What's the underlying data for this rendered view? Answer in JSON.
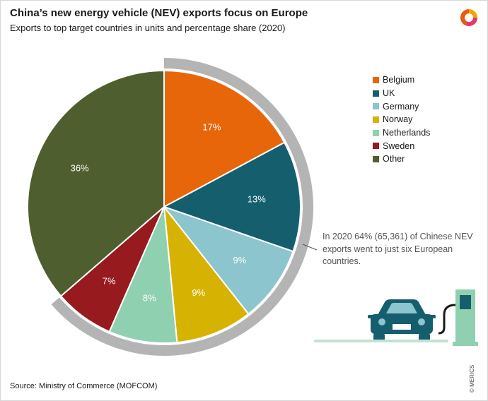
{
  "header": {
    "title": "China’s new energy vehicle (NEV) exports focus on Europe",
    "subtitle": "Exports to top target countries in units and percentage share (2020)"
  },
  "footer": {
    "source": "Source: Ministry of Commerce (MOFCOM)",
    "copyright": "© MERICS"
  },
  "annotation": {
    "text": "In 2020 64% (65,361) of Chinese NEV exports went to just six European countries."
  },
  "icons": [
    "merics-logo-icon",
    "electric-car-icon",
    "charging-station-icon"
  ],
  "chart_data": {
    "type": "pie",
    "title": "China’s new energy vehicle (NEV) exports focus on Europe",
    "subtitle": "Exports to top target countries in units and percentage share (2020)",
    "slices": [
      {
        "label": "Belgium",
        "value": 17,
        "value_label": "17%",
        "color": "#e8660a"
      },
      {
        "label": "UK",
        "value": 13,
        "value_label": "13%",
        "color": "#155e6e"
      },
      {
        "label": "Germany",
        "value": 9,
        "value_label": "9%",
        "color": "#8cc5ce"
      },
      {
        "label": "Norway",
        "value": 9,
        "value_label": "9%",
        "color": "#d6b302"
      },
      {
        "label": "Netherlands",
        "value": 8,
        "value_label": "8%",
        "color": "#8fd0b0"
      },
      {
        "label": "Sweden",
        "value": 7,
        "value_label": "7%",
        "color": "#961a1e"
      },
      {
        "label": "Other",
        "value": 36,
        "value_label": "36%",
        "color": "#4e5e2e"
      }
    ],
    "start": "12 o'clock, clockwise",
    "highlight": "grey arc around the six European country slices",
    "highlight_color": "#b4b4b4",
    "legend_position": "right"
  },
  "colors": {
    "text": "#1a1a1a",
    "annotation_text": "#555555",
    "car": "#155e6e",
    "charger": "#8fd0b0",
    "ground": "#bfe3d2"
  }
}
